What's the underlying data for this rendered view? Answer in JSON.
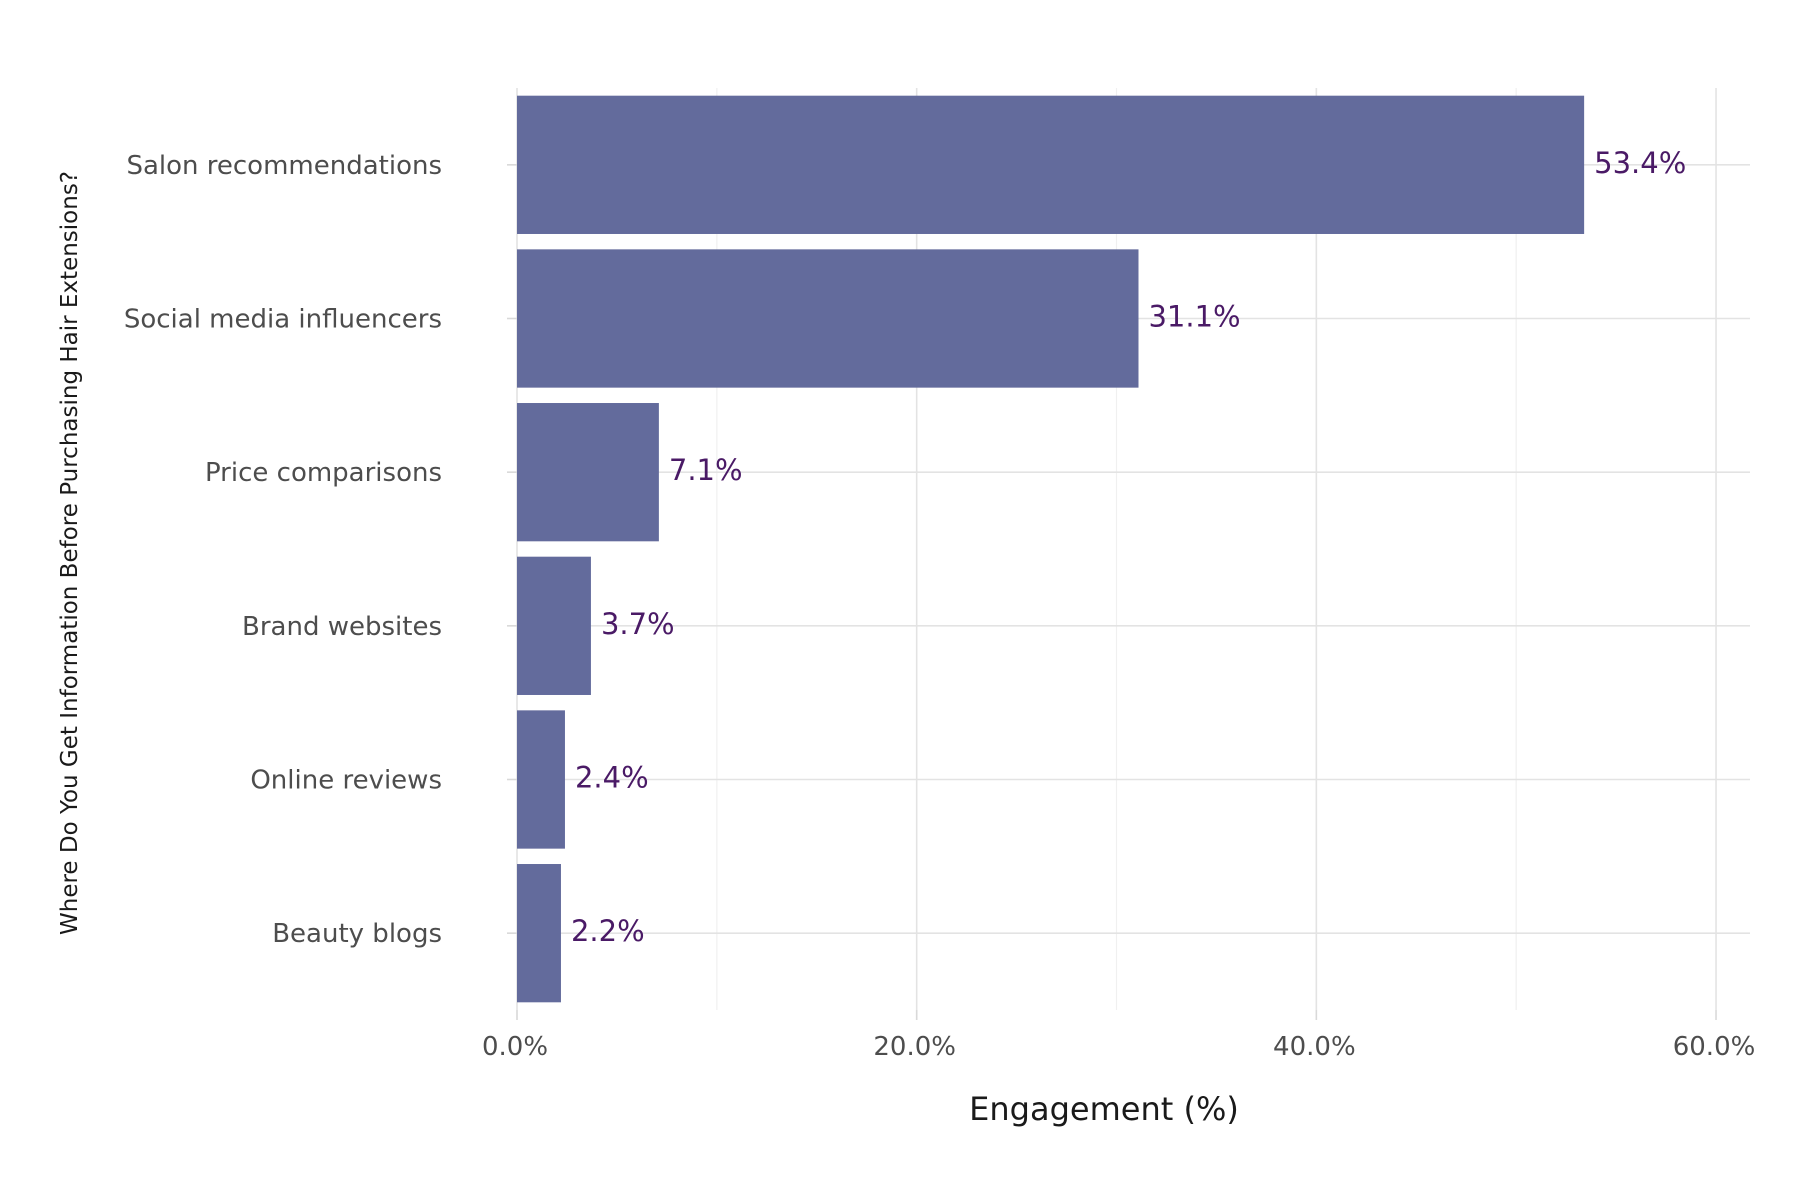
{
  "chart_data": {
    "type": "bar",
    "orientation": "horizontal",
    "categories": [
      "Salon recommendations",
      "Social media influencers",
      "Price comparisons",
      "Brand websites",
      "Online reviews",
      "Beauty blogs"
    ],
    "values": [
      53.4,
      31.1,
      7.1,
      3.7,
      2.4,
      2.2
    ],
    "value_labels": [
      "53.4%",
      "31.1%",
      "7.1%",
      "3.7%",
      "2.4%",
      "2.2%"
    ],
    "xlabel": "Engagement (%)",
    "ylabel": "Where Do You Get Information Before Purchasing Hair Extensions?",
    "xlim": [
      0,
      61.7
    ],
    "x_ticks": [
      0,
      20,
      40,
      60
    ],
    "x_tick_labels": [
      "0.0%",
      "20.0%",
      "40.0%",
      "60.0%"
    ],
    "grid": true,
    "legend": "none",
    "colors": {
      "bar": "#636b9c",
      "value_label": "#4a1a66"
    }
  }
}
